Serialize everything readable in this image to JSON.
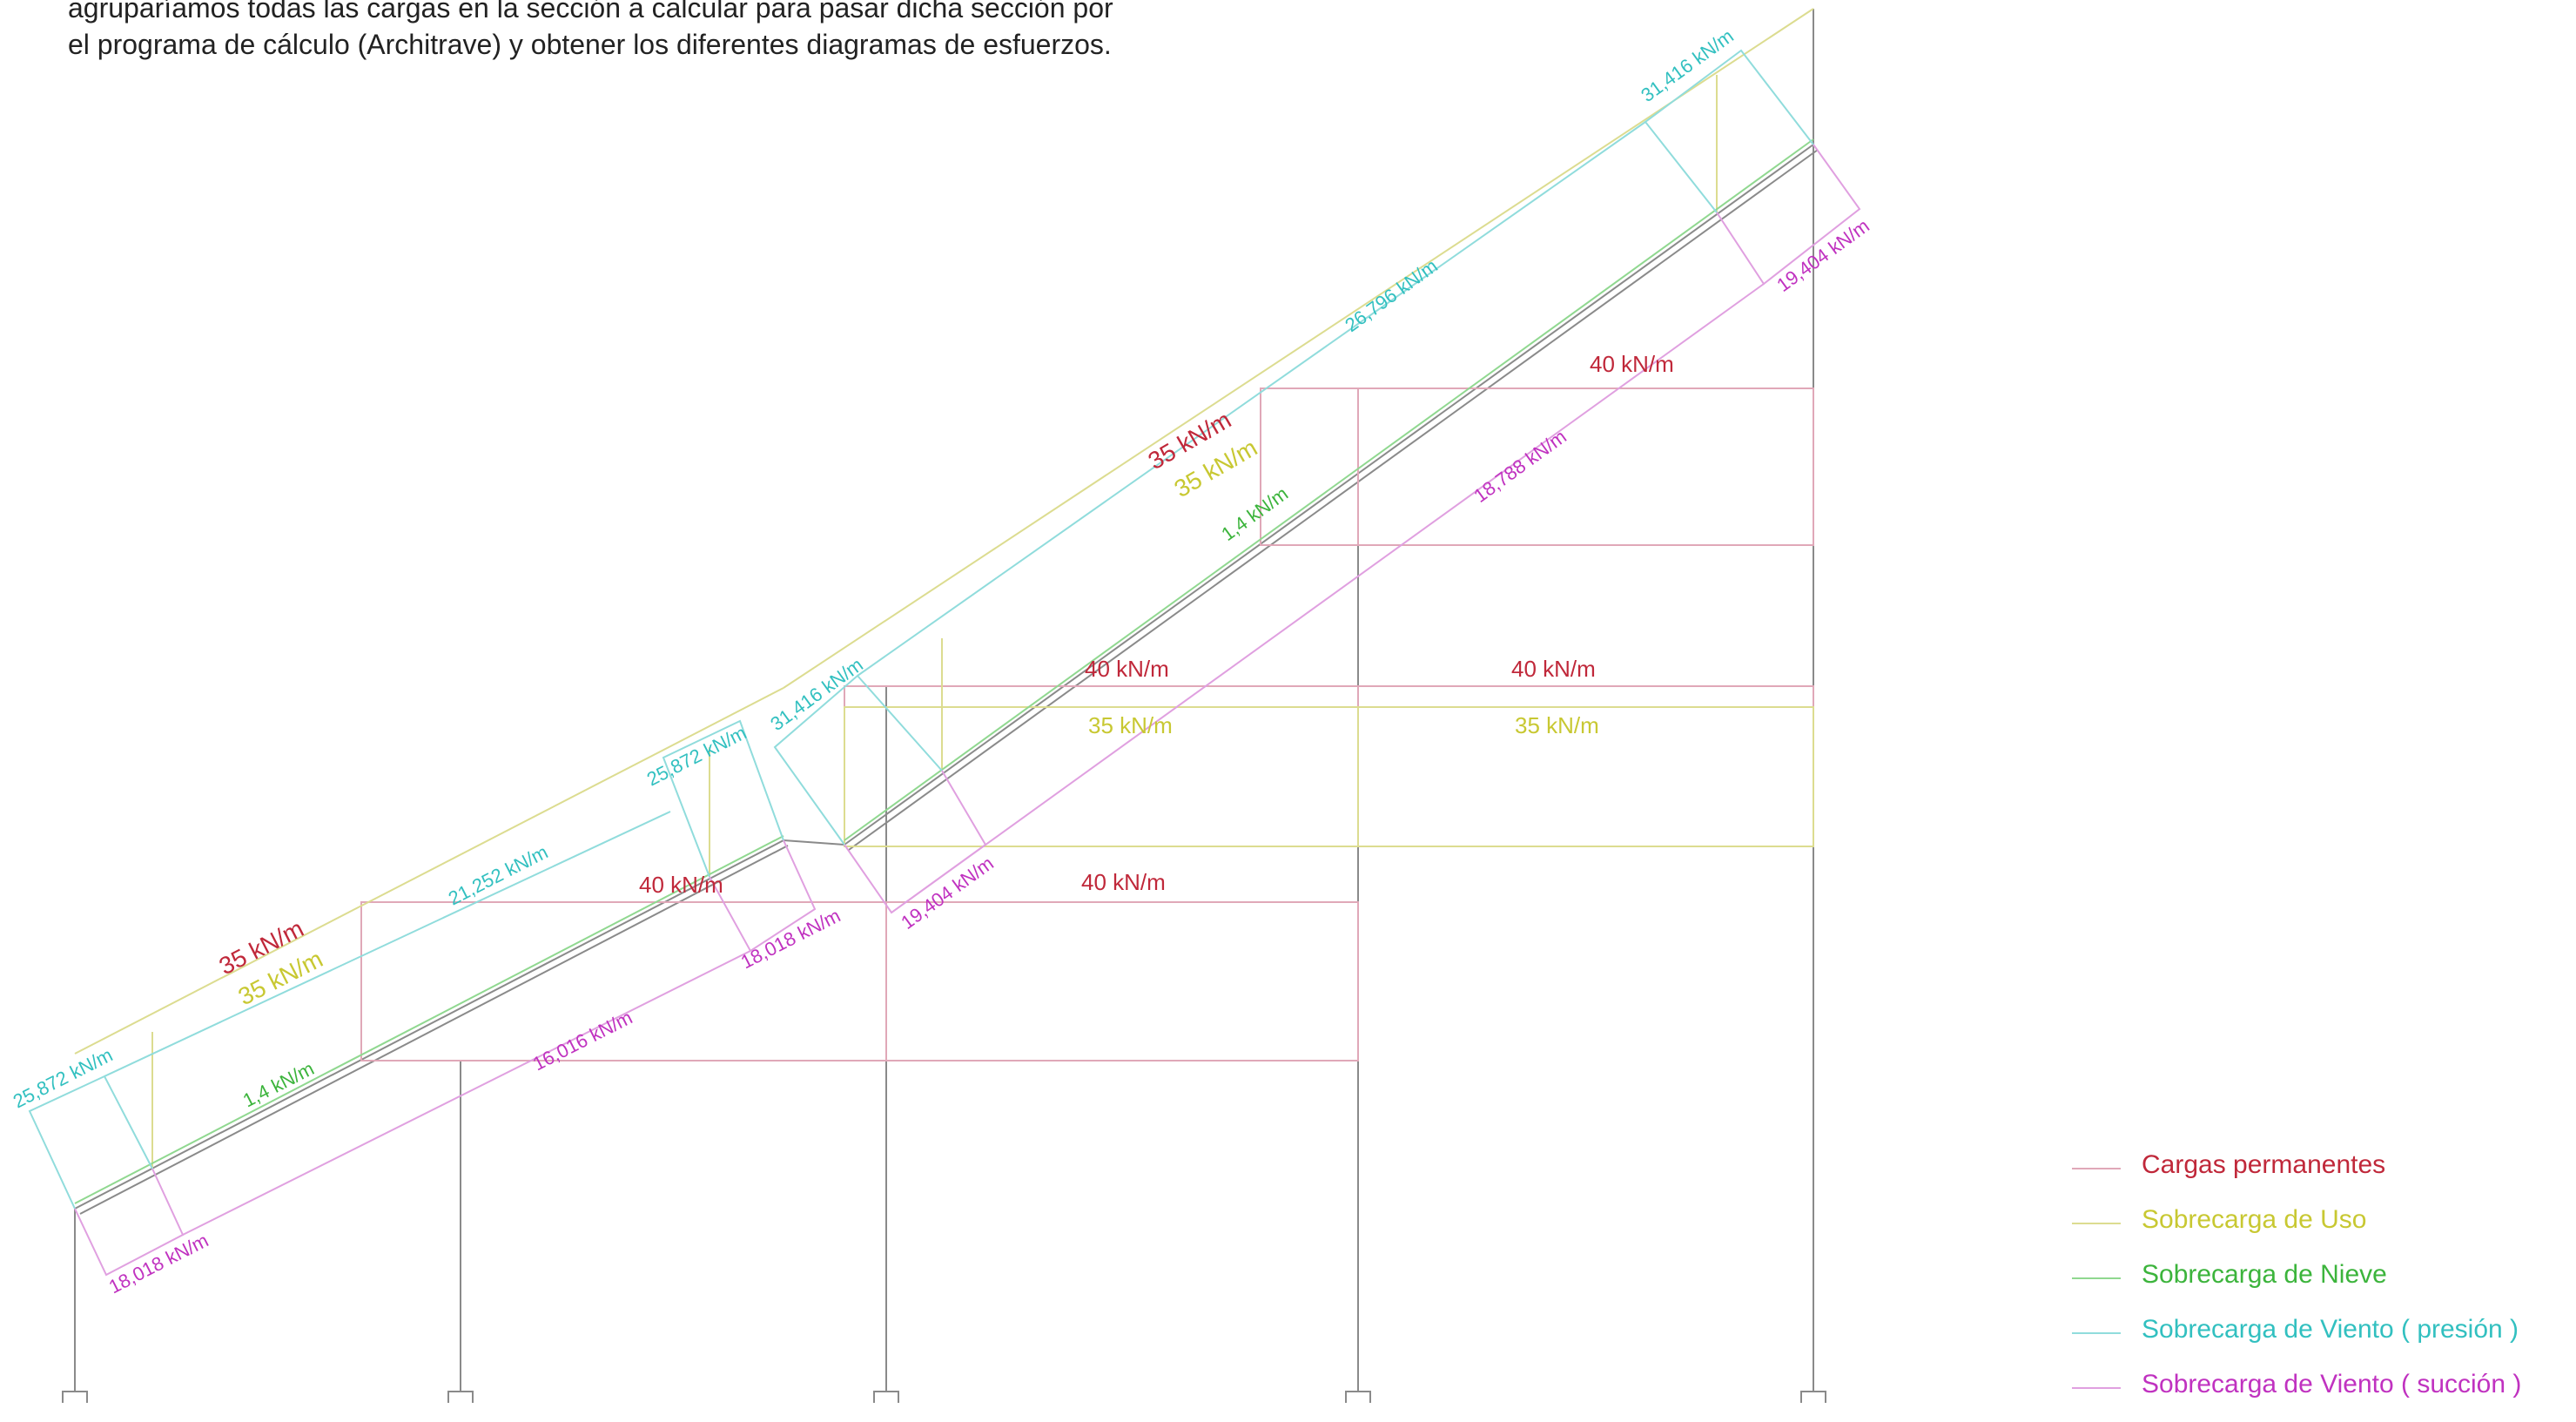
{
  "intro": {
    "line1": "agruparíamos todas las cargas en la sección a calcular para pasar dicha sección por",
    "line2": "el programa de cálculo (Architrave) y obtener los diferentes diagramas de esfuerzos."
  },
  "colors": {
    "structure": "#8a8a8a",
    "permanent": "#c0283a",
    "use": "#c8c832",
    "snow": "#3cb43c",
    "wind_pressure": "#32c0c0",
    "wind_suction": "#c032c0",
    "permanent_lines": "#e0a8b8",
    "use_lines": "#dcdc90",
    "snow_lines": "#90d890",
    "pressure_lines": "#90dcdc",
    "suction_lines": "#e0a0e0"
  },
  "loads": {
    "perm_roof_left": "35 kN/m",
    "use_roof_left": "35 kN/m",
    "snow_left": "1,4 kN/m",
    "wp_left_end": "25,872 kN/m",
    "wp_left_mid": "21,252 kN/m",
    "wp_left_ridge": "25,872 kN/m",
    "ws_left_end": "18,018 kN/m",
    "ws_left_mid": "16,016 kN/m",
    "ws_left_ridge": "18,018 kN/m",
    "perm_slab_low_left": "40 kN/m",
    "perm_slab_low_right": "40 kN/m",
    "perm_roof_right": "35 kN/m",
    "use_roof_right": "35 kN/m",
    "snow_right": "1,4 kN/m",
    "wp_right_start": "31,416 kN/m",
    "wp_right_mid": "26,796 kN/m",
    "wp_right_end": "31,416 kN/m",
    "ws_right_start": "19,404 kN/m",
    "ws_right_mid": "18,788 kN/m",
    "ws_right_end": "19,404 kN/m",
    "perm_slab_mid_left": "40 kN/m",
    "perm_slab_mid_right": "40 kN/m",
    "use_slab_mid_left": "35 kN/m",
    "use_slab_mid_right": "35 kN/m",
    "perm_slab_top": "40 kN/m"
  },
  "legend": {
    "items": [
      {
        "label": "Cargas permanentes",
        "color": "#c0283a",
        "swatch": "#e0a8b8"
      },
      {
        "label": "Sobrecarga de Uso",
        "color": "#c8c832",
        "swatch": "#dcdc90"
      },
      {
        "label": "Sobrecarga de Nieve",
        "color": "#3cb43c",
        "swatch": "#90d890"
      },
      {
        "label": "Sobrecarga de Viento ( presión )",
        "color": "#32c0c0",
        "swatch": "#90dcdc"
      },
      {
        "label": "Sobrecarga de Viento ( succión )",
        "color": "#c032c0",
        "swatch": "#e0a0e0"
      }
    ]
  }
}
